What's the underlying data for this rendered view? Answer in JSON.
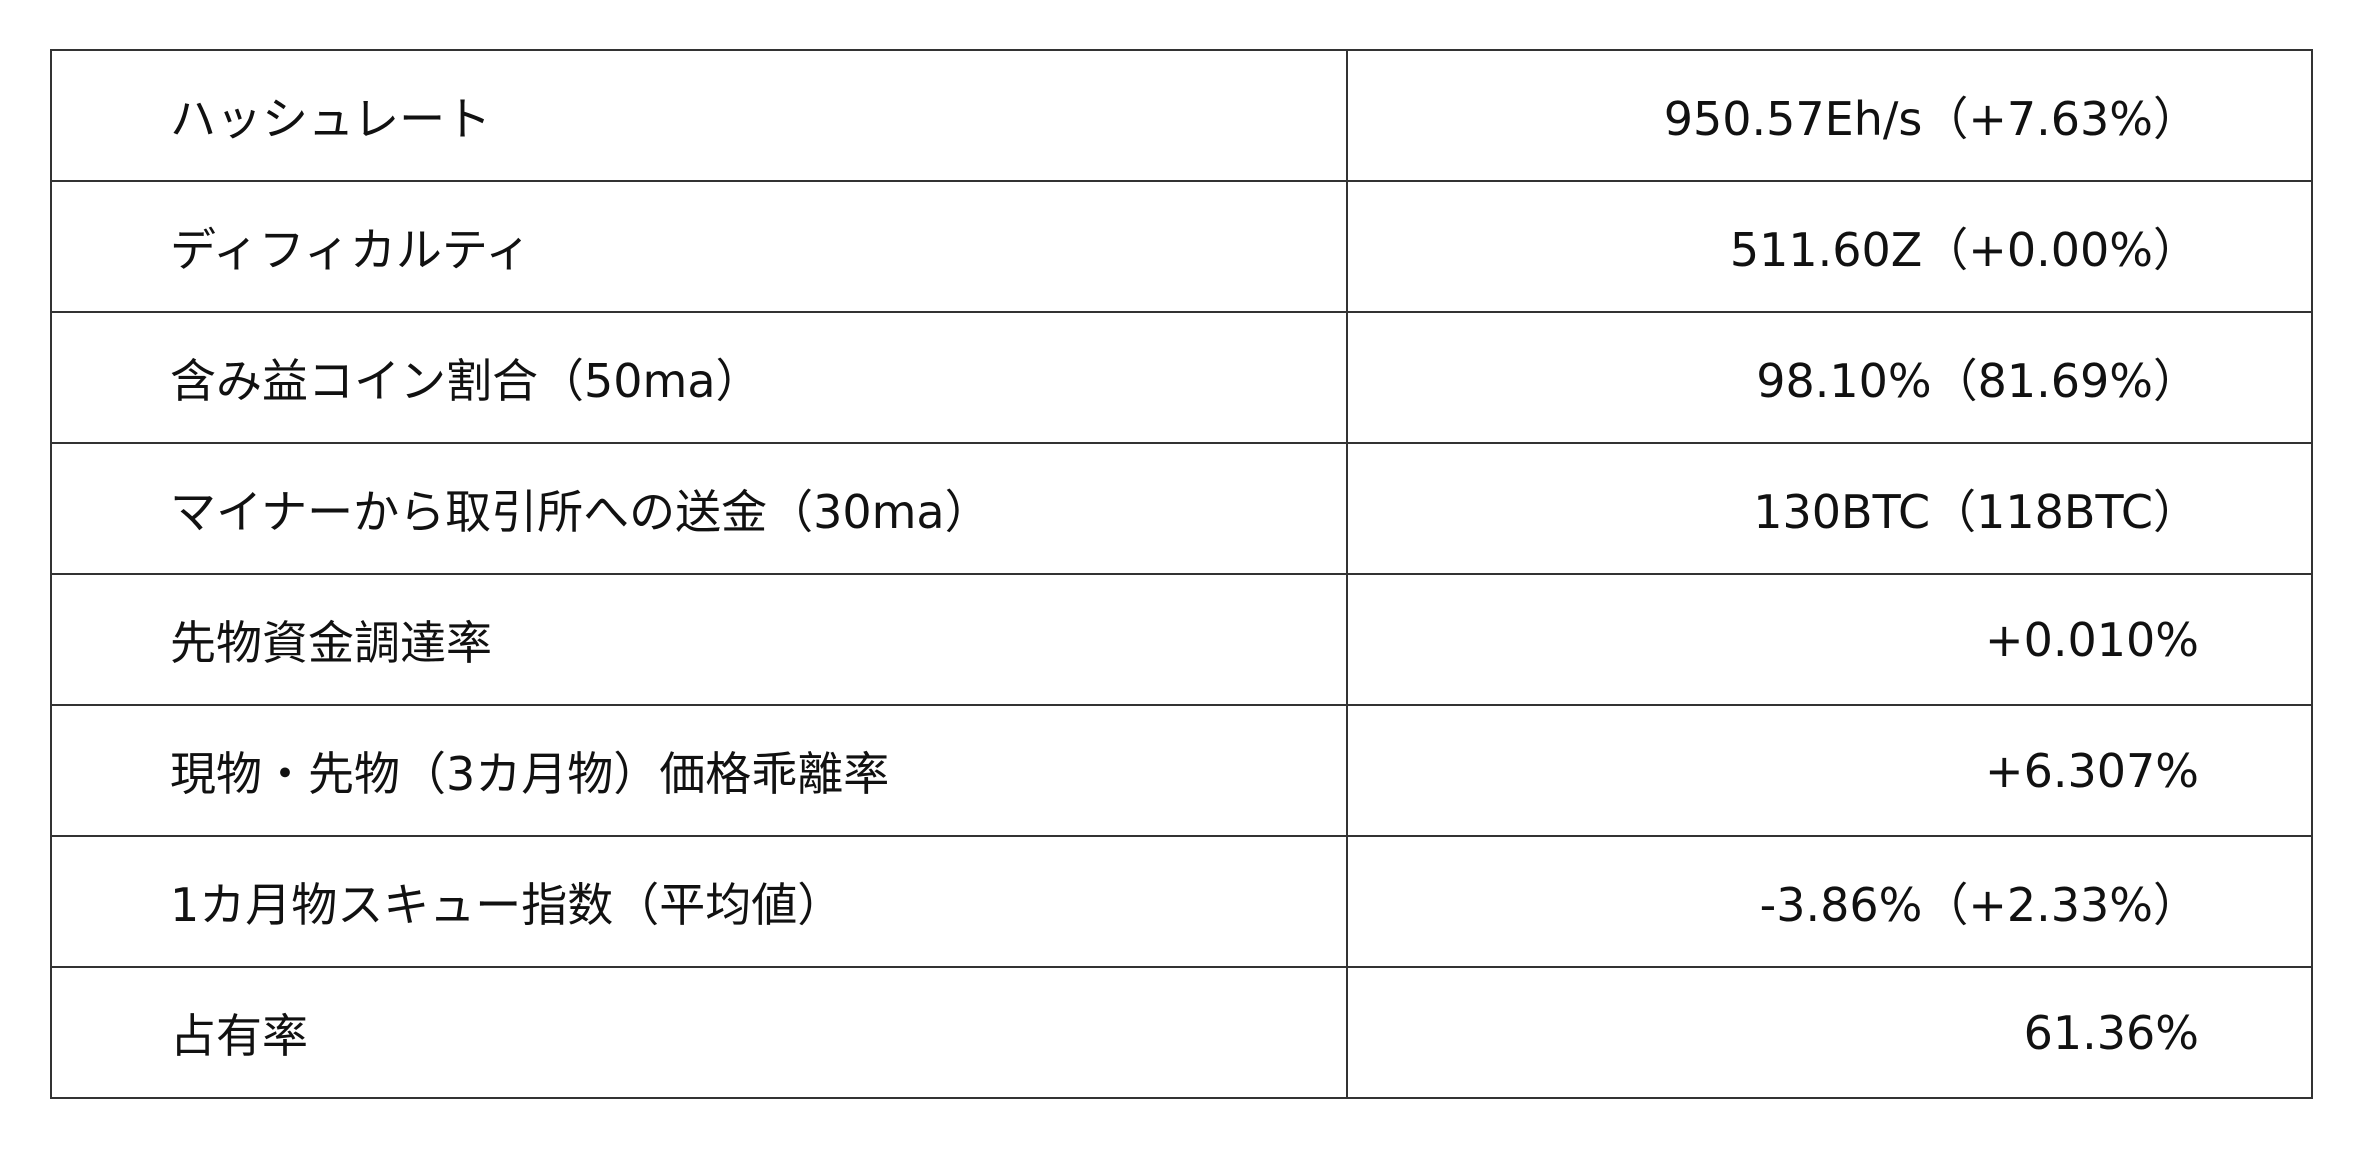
{
  "rows": [
    {
      "label": "ハッシュレート",
      "value": "950.57Eh/s（+7.63%）"
    },
    {
      "label": "ディフィカルティ",
      "value": "511.60Z（+0.00%）"
    },
    {
      "label": "含み益コイン割合（50ma）",
      "value": "98.10%（81.69%）"
    },
    {
      "label": "マイナーから取引所への送金（30ma）",
      "value": "130BTC（118BTC）"
    },
    {
      "label": "先物資金調達率",
      "value": "+0.010%"
    },
    {
      "label": "現物・先物（3カ月物）価格乖離率",
      "value": "+6.307%"
    },
    {
      "label": "1カ月物スキュー指数（平均値）",
      "value": "-3.86%（+2.33%）"
    },
    {
      "label": "占有率",
      "value": "61.36%"
    }
  ]
}
